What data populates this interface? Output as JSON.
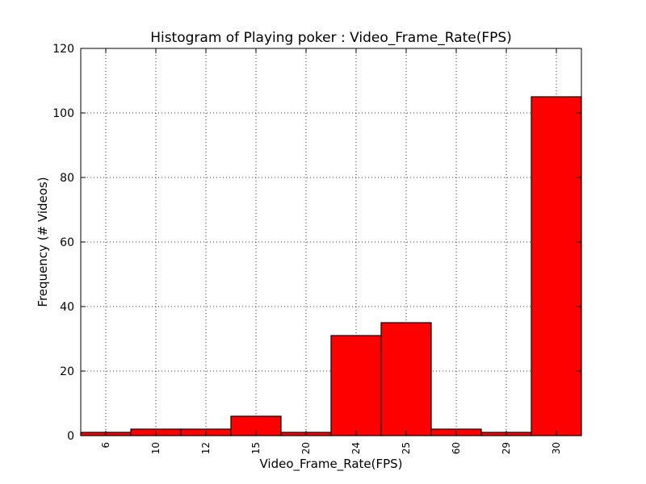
{
  "chart_data": {
    "type": "bar",
    "title": "Histogram of Playing poker : Video_Frame_Rate(FPS)",
    "xlabel": "Video_Frame_Rate(FPS)",
    "ylabel": "Frequency (# Videos)",
    "categories": [
      "6",
      "10",
      "12",
      "15",
      "20",
      "24",
      "25",
      "60",
      "29",
      "30"
    ],
    "values": [
      1,
      2,
      2,
      6,
      1,
      31,
      35,
      2,
      1,
      105
    ],
    "ylim": [
      0,
      120
    ],
    "yticks": [
      0,
      20,
      40,
      60,
      80,
      100,
      120
    ],
    "grid": true,
    "colors": {
      "bar": "#ff0000",
      "edge": "#000000"
    }
  }
}
